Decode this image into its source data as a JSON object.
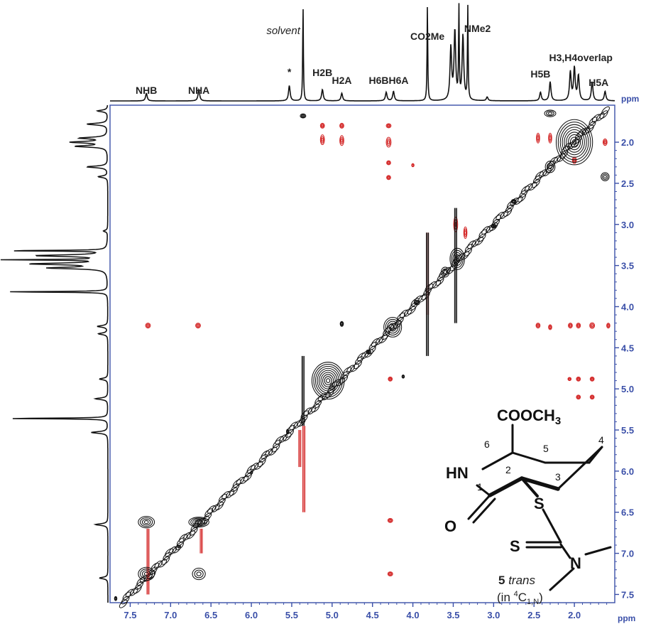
{
  "chart_data": {
    "type": "scatter",
    "title": "",
    "xlabel": "ppm",
    "ylabel": "ppm",
    "xlim": [
      7.75,
      1.5
    ],
    "ylim": [
      1.55,
      7.6
    ],
    "x_ticks": [
      7.5,
      7.0,
      6.5,
      6.0,
      5.5,
      5.0,
      4.5,
      4.0,
      3.5,
      3.0,
      2.5,
      2.0
    ],
    "y_ticks": [
      2.0,
      2.5,
      3.0,
      3.5,
      4.0,
      4.5,
      5.0,
      5.5,
      6.0,
      6.5,
      7.0,
      7.5
    ],
    "tick_labels_x": [
      "7.5",
      "7.0",
      "6.5",
      "6.0",
      "5.5",
      "5.0",
      "4.5",
      "4.0",
      "3.5",
      "3.0",
      "2.5",
      "2.0"
    ],
    "tick_labels_y": [
      "2.0",
      "2.5",
      "3.0",
      "3.5",
      "4.0",
      "4.5",
      "5.0",
      "5.5",
      "6.0",
      "6.5",
      "7.0",
      "7.5"
    ],
    "peak_labels": [
      {
        "text": "NHB",
        "ppm": 7.3
      },
      {
        "text": "NHA",
        "ppm": 6.65
      },
      {
        "text": "*",
        "ppm": 5.53
      },
      {
        "text": "H2B",
        "ppm": 5.12
      },
      {
        "text": "H2A",
        "ppm": 4.88
      },
      {
        "text": "H6BH6A",
        "ppm": 4.3
      },
      {
        "text": "CO2Me",
        "ppm": 3.82
      },
      {
        "text": "NMe2",
        "ppm": 3.2
      },
      {
        "text": "H5B",
        "ppm": 2.42
      },
      {
        "text": "H3,H4overlap",
        "ppm": 1.92
      },
      {
        "text": "H5A",
        "ppm": 1.7
      }
    ],
    "solvent_label": "solvent",
    "solvent_ppm": 5.36,
    "spectrum_peaks": [
      {
        "ppm": 7.3,
        "height": 0.08
      },
      {
        "ppm": 6.65,
        "height": 0.12
      },
      {
        "ppm": 5.53,
        "height": 0.16
      },
      {
        "ppm": 5.36,
        "height": 1.0
      },
      {
        "ppm": 5.12,
        "height": 0.12
      },
      {
        "ppm": 4.88,
        "height": 0.08
      },
      {
        "ppm": 4.33,
        "height": 0.09
      },
      {
        "ppm": 4.24,
        "height": 0.1
      },
      {
        "ppm": 3.82,
        "height": 1.0
      },
      {
        "ppm": 3.53,
        "height": 0.55
      },
      {
        "ppm": 3.48,
        "height": 0.72
      },
      {
        "ppm": 3.43,
        "height": 0.95
      },
      {
        "ppm": 3.38,
        "height": 0.68
      },
      {
        "ppm": 3.32,
        "height": 0.98
      },
      {
        "ppm": 3.08,
        "height": 0.04
      },
      {
        "ppm": 2.42,
        "height": 0.09
      },
      {
        "ppm": 2.3,
        "height": 0.2
      },
      {
        "ppm": 2.05,
        "height": 0.3
      },
      {
        "ppm": 2.0,
        "height": 0.34
      },
      {
        "ppm": 1.95,
        "height": 0.26
      },
      {
        "ppm": 1.78,
        "height": 0.2
      },
      {
        "ppm": 1.62,
        "height": 0.1
      }
    ],
    "series": [
      {
        "name": "black",
        "color": "#111111",
        "points": [
          {
            "x": 7.3,
            "y": 6.62,
            "w": 0.2,
            "h": 0.14
          },
          {
            "x": 7.3,
            "y": 7.25,
            "w": 0.2,
            "h": 0.16
          },
          {
            "x": 6.65,
            "y": 6.62,
            "w": 0.25,
            "h": 0.12
          },
          {
            "x": 6.65,
            "y": 7.25,
            "w": 0.16,
            "h": 0.14
          },
          {
            "x": 5.05,
            "y": 4.9,
            "w": 0.4,
            "h": 0.45
          },
          {
            "x": 4.88,
            "y": 4.21,
            "w": 0.04,
            "h": 0.06
          },
          {
            "x": 4.25,
            "y": 4.25,
            "w": 0.22,
            "h": 0.24
          },
          {
            "x": 4.12,
            "y": 4.85,
            "w": 0.03,
            "h": 0.04
          },
          {
            "x": 3.45,
            "y": 3.42,
            "w": 0.18,
            "h": 0.26
          },
          {
            "x": 3.6,
            "y": 3.58,
            "w": 0.1,
            "h": 0.12
          },
          {
            "x": 2.3,
            "y": 2.3,
            "w": 0.12,
            "h": 0.14
          },
          {
            "x": 2.0,
            "y": 2.0,
            "w": 0.45,
            "h": 0.55
          },
          {
            "x": 2.3,
            "y": 1.65,
            "w": 0.14,
            "h": 0.08
          },
          {
            "x": 1.62,
            "y": 2.42,
            "w": 0.1,
            "h": 0.1
          },
          {
            "x": 5.36,
            "y": 1.68,
            "w": 0.07,
            "h": 0.05
          },
          {
            "x": 5.55,
            "y": 5.52,
            "w": 0.03,
            "h": 0.06
          },
          {
            "x": 4.55,
            "y": 4.55,
            "w": 0.06,
            "h": 0.05
          },
          {
            "x": 3.95,
            "y": 3.95,
            "w": 0.07,
            "h": 0.06
          },
          {
            "x": 3.0,
            "y": 3.02,
            "w": 0.06,
            "h": 0.05
          },
          {
            "x": 2.75,
            "y": 2.72,
            "w": 0.06,
            "h": 0.05
          },
          {
            "x": 6.0,
            "y": 6.02,
            "w": 0.03,
            "h": 0.03
          },
          {
            "x": 6.9,
            "y": 6.92,
            "w": 0.03,
            "h": 0.03
          },
          {
            "x": 7.68,
            "y": 7.55,
            "w": 0.03,
            "h": 0.05
          }
        ],
        "diagonal_ridge": {
          "from_ppm": 7.6,
          "to_ppm": 1.6
        },
        "vertical_streaks": [
          {
            "x": 5.36,
            "y_from": 4.6,
            "y_to": 5.45
          },
          {
            "x": 3.82,
            "y_from": 3.1,
            "y_to": 4.6
          },
          {
            "x": 3.47,
            "y_from": 2.8,
            "y_to": 4.2
          }
        ]
      },
      {
        "name": "red",
        "color": "#d42b2b",
        "points": [
          {
            "x": 5.12,
            "y": 1.8,
            "w": 0.05,
            "h": 0.06
          },
          {
            "x": 5.12,
            "y": 1.97,
            "w": 0.05,
            "h": 0.12
          },
          {
            "x": 4.88,
            "y": 1.8,
            "w": 0.05,
            "h": 0.06
          },
          {
            "x": 4.88,
            "y": 1.98,
            "w": 0.05,
            "h": 0.12
          },
          {
            "x": 4.3,
            "y": 1.8,
            "w": 0.06,
            "h": 0.05
          },
          {
            "x": 4.3,
            "y": 2.0,
            "w": 0.06,
            "h": 0.12
          },
          {
            "x": 4.3,
            "y": 2.25,
            "w": 0.05,
            "h": 0.05
          },
          {
            "x": 4.3,
            "y": 2.43,
            "w": 0.05,
            "h": 0.05
          },
          {
            "x": 4.0,
            "y": 2.28,
            "w": 0.03,
            "h": 0.04
          },
          {
            "x": 7.28,
            "y": 4.23,
            "w": 0.06,
            "h": 0.06
          },
          {
            "x": 6.66,
            "y": 4.23,
            "w": 0.06,
            "h": 0.06
          },
          {
            "x": 2.45,
            "y": 4.23,
            "w": 0.05,
            "h": 0.06
          },
          {
            "x": 2.3,
            "y": 4.25,
            "w": 0.04,
            "h": 0.06
          },
          {
            "x": 2.05,
            "y": 4.23,
            "w": 0.05,
            "h": 0.06
          },
          {
            "x": 1.95,
            "y": 4.23,
            "w": 0.05,
            "h": 0.06
          },
          {
            "x": 1.78,
            "y": 4.23,
            "w": 0.06,
            "h": 0.07
          },
          {
            "x": 1.58,
            "y": 4.23,
            "w": 0.04,
            "h": 0.06
          },
          {
            "x": 2.06,
            "y": 4.88,
            "w": 0.04,
            "h": 0.04
          },
          {
            "x": 1.95,
            "y": 4.88,
            "w": 0.05,
            "h": 0.05
          },
          {
            "x": 1.78,
            "y": 4.88,
            "w": 0.05,
            "h": 0.05
          },
          {
            "x": 1.95,
            "y": 5.1,
            "w": 0.05,
            "h": 0.05
          },
          {
            "x": 1.78,
            "y": 5.1,
            "w": 0.05,
            "h": 0.05
          },
          {
            "x": 4.28,
            "y": 4.88,
            "w": 0.05,
            "h": 0.05
          },
          {
            "x": 4.28,
            "y": 6.6,
            "w": 0.06,
            "h": 0.05
          },
          {
            "x": 4.28,
            "y": 7.25,
            "w": 0.06,
            "h": 0.05
          },
          {
            "x": 2.45,
            "y": 1.95,
            "w": 0.04,
            "h": 0.12
          },
          {
            "x": 2.3,
            "y": 1.95,
            "w": 0.04,
            "h": 0.12
          },
          {
            "x": 1.62,
            "y": 2.0,
            "w": 0.05,
            "h": 0.08
          },
          {
            "x": 2.0,
            "y": 2.22,
            "w": 0.05,
            "h": 0.08
          },
          {
            "x": 3.47,
            "y": 3.0,
            "w": 0.05,
            "h": 0.18
          },
          {
            "x": 3.35,
            "y": 3.1,
            "w": 0.04,
            "h": 0.14
          }
        ],
        "vertical_streaks": [
          {
            "x": 5.35,
            "y_from": 5.45,
            "y_to": 6.5
          },
          {
            "x": 5.4,
            "y_from": 5.5,
            "y_to": 5.95
          },
          {
            "x": 3.82,
            "y_from": 3.1,
            "y_to": 4.1
          },
          {
            "x": 7.28,
            "y_from": 6.7,
            "y_to": 7.5
          },
          {
            "x": 6.62,
            "y_from": 6.7,
            "y_to": 7.0
          }
        ]
      }
    ]
  },
  "molecule": {
    "caption_number": "5",
    "caption_word": "trans",
    "caption_sub_prefix": "(in ",
    "caption_sup": "4",
    "caption_c": "C",
    "caption_sub": "1,N",
    "caption_close": ")",
    "atoms": {
      "ester": "COOCH",
      "ester_sub": "3",
      "nh": "HN",
      "o": "O",
      "s1": "S",
      "s2": "S",
      "n": "N"
    },
    "ring_numbers": [
      "1",
      "2",
      "3",
      "4",
      "5",
      "6"
    ]
  }
}
